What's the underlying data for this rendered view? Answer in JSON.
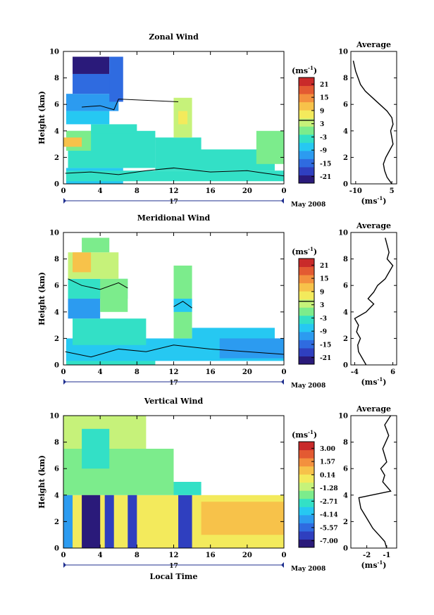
{
  "figure": {
    "xlabel": "Local Time",
    "date_label": "May 2008",
    "day_label": "17",
    "unit_label": "(ms",
    "unit_exp": "-1",
    "unit_close": ")"
  },
  "chart_data": [
    {
      "type": "heatmap",
      "title": "Zonal Wind",
      "ylabel": "Height (km)",
      "xlim": [
        0,
        24
      ],
      "ylim": [
        0,
        10
      ],
      "xticks": [
        "0",
        "4",
        "8",
        "12",
        "16",
        "20",
        "0"
      ],
      "yticks": [
        "0",
        "2",
        "4",
        "6",
        "8",
        "10"
      ],
      "colorbar": {
        "label": "(ms-1)",
        "ticks": [
          "21",
          "15",
          "9",
          "3",
          "-3",
          "-9",
          "-15",
          "-21"
        ],
        "range": [
          -24,
          24
        ]
      },
      "cells": [
        {
          "x0": 0.3,
          "x1": 6.5,
          "y0": 0,
          "y1": 1.2,
          "v": -6
        },
        {
          "x0": 0.3,
          "x1": 24,
          "y0": 0.2,
          "y1": 1.0,
          "v": -5
        },
        {
          "x0": 0.5,
          "x1": 10,
          "y0": 1.2,
          "y1": 4.0,
          "v": -2
        },
        {
          "x0": 0.3,
          "x1": 3,
          "y0": 2.5,
          "y1": 4.0,
          "v": 1
        },
        {
          "x0": 0,
          "x1": 2,
          "y0": 2.8,
          "y1": 3.5,
          "v": 10
        },
        {
          "x0": 3,
          "x1": 8,
          "y0": 3.8,
          "y1": 4.5,
          "v": -4
        },
        {
          "x0": 0.3,
          "x1": 5,
          "y0": 4.5,
          "y1": 5.5,
          "v": -6
        },
        {
          "x0": 0.3,
          "x1": 6,
          "y0": 5.5,
          "y1": 6.8,
          "v": -10
        },
        {
          "x0": 1,
          "x1": 6,
          "y0": 6.8,
          "y1": 8.3,
          "v": -15
        },
        {
          "x0": 1,
          "x1": 5,
          "y0": 8.3,
          "y1": 9.6,
          "v": -22
        },
        {
          "x0": 5,
          "x1": 6.5,
          "y0": 6.2,
          "y1": 9.6,
          "v": -13
        },
        {
          "x0": 10,
          "x1": 15,
          "y0": 1.0,
          "y1": 3.5,
          "v": -3
        },
        {
          "x0": 12,
          "x1": 14,
          "y0": 3.5,
          "y1": 6.5,
          "v": 2
        },
        {
          "x0": 12.5,
          "x1": 13.5,
          "y0": 4.5,
          "y1": 5.5,
          "v": 6
        },
        {
          "x0": 14,
          "x1": 23,
          "y0": 1.0,
          "y1": 2.6,
          "v": -3
        },
        {
          "x0": 21,
          "x1": 24,
          "y0": 1.5,
          "y1": 4.0,
          "v": -1
        }
      ],
      "zero_contours": [
        [
          [
            0.2,
            0.8
          ],
          [
            3,
            0.9
          ],
          [
            6,
            0.7
          ],
          [
            9,
            1.0
          ],
          [
            12,
            1.2
          ],
          [
            16,
            0.9
          ],
          [
            20,
            1.0
          ],
          [
            24,
            0.6
          ]
        ],
        [
          [
            2,
            5.8
          ],
          [
            4,
            5.9
          ],
          [
            5.5,
            5.6
          ],
          [
            6,
            6.4
          ],
          [
            12.5,
            6.2
          ]
        ]
      ],
      "profile": {
        "title": "Average",
        "unit": "(ms",
        "xlim": [
          -12,
          7
        ],
        "xticks": [
          "-10",
          "5"
        ],
        "xtick_vals": [
          -10,
          5
        ],
        "yticks": [
          "0",
          "2",
          "4",
          "6",
          "8",
          "10"
        ],
        "zero_line": -1,
        "x": [
          5,
          3,
          2,
          1.5,
          2.5,
          4,
          5.5,
          5,
          4.5,
          5.5,
          5,
          3,
          0,
          -3,
          -6,
          -8,
          -9,
          -10,
          -11
        ],
        "y": [
          0,
          0.5,
          1,
          1.5,
          2,
          2.5,
          3,
          3.5,
          4,
          4.5,
          5,
          5.5,
          6,
          6.5,
          7,
          7.5,
          8,
          8.5,
          9.3
        ]
      }
    },
    {
      "type": "heatmap",
      "title": "Meridional Wind",
      "ylabel": "Height (km)",
      "xlim": [
        0,
        24
      ],
      "ylim": [
        0,
        10
      ],
      "xticks": [
        "0",
        "4",
        "8",
        "12",
        "16",
        "20",
        "0"
      ],
      "yticks": [
        "0",
        "2",
        "4",
        "6",
        "8",
        "10"
      ],
      "colorbar": {
        "label": "(ms-1)",
        "ticks": [
          "21",
          "15",
          "9",
          "3",
          "-3",
          "-9",
          "-15",
          "-21"
        ],
        "range": [
          -24,
          24
        ]
      },
      "cells": [
        {
          "x0": 0.3,
          "x1": 10,
          "y0": 0,
          "y1": 1.5,
          "v": -5
        },
        {
          "x0": 0.3,
          "x1": 24,
          "y0": 0.3,
          "y1": 2.0,
          "v": -8
        },
        {
          "x0": 1,
          "x1": 9,
          "y0": 1.5,
          "y1": 3.5,
          "v": -4
        },
        {
          "x0": 0.5,
          "x1": 4,
          "y0": 3.5,
          "y1": 5.0,
          "v": -10
        },
        {
          "x0": 0.5,
          "x1": 7,
          "y0": 5.0,
          "y1": 6.5,
          "v": -2
        },
        {
          "x0": 4,
          "x1": 7,
          "y0": 4,
          "y1": 6.5,
          "v": 0
        },
        {
          "x0": 0.5,
          "x1": 6,
          "y0": 6.5,
          "y1": 8.5,
          "v": 4
        },
        {
          "x0": 1,
          "x1": 3,
          "y0": 7,
          "y1": 8.5,
          "v": 12
        },
        {
          "x0": 2,
          "x1": 5,
          "y0": 8.5,
          "y1": 9.6,
          "v": -1
        },
        {
          "x0": 12,
          "x1": 14,
          "y0": 2,
          "y1": 7.5,
          "v": 1
        },
        {
          "x0": 12,
          "x1": 14,
          "y0": 4,
          "y1": 5,
          "v": -6
        },
        {
          "x0": 14,
          "x1": 23,
          "y0": 1,
          "y1": 2.8,
          "v": -7
        },
        {
          "x0": 17,
          "x1": 24,
          "y0": 0.5,
          "y1": 2.0,
          "v": -11
        }
      ],
      "zero_contours": [
        [
          [
            0.2,
            1.0
          ],
          [
            3,
            0.6
          ],
          [
            6,
            1.2
          ],
          [
            9,
            1.0
          ],
          [
            12,
            1.5
          ],
          [
            16,
            1.2
          ],
          [
            20,
            1.0
          ],
          [
            24,
            0.8
          ]
        ],
        [
          [
            0.5,
            6.5
          ],
          [
            2,
            6.0
          ],
          [
            4,
            5.7
          ],
          [
            6,
            6.2
          ],
          [
            7,
            5.8
          ]
        ],
        [
          [
            12,
            4.4
          ],
          [
            13,
            4.8
          ],
          [
            14,
            4.3
          ]
        ]
      ],
      "profile": {
        "title": "Average",
        "unit": "(ms",
        "xlim": [
          -5,
          7
        ],
        "xticks": [
          "-4",
          "6"
        ],
        "xtick_vals": [
          -4,
          6
        ],
        "yticks": [
          "0",
          "2",
          "4",
          "6",
          "8",
          "10"
        ],
        "zero_line": -2,
        "x": [
          -1,
          -2,
          -3,
          -3.2,
          -2.5,
          -3.5,
          -3,
          -4,
          -1,
          0,
          1,
          -0.5,
          1,
          2,
          4,
          5,
          6,
          4.5,
          5,
          4
        ],
        "y": [
          0,
          0.5,
          1,
          1.5,
          2,
          2.5,
          3,
          3.5,
          4,
          4.3,
          4.6,
          5,
          5.5,
          6,
          6.5,
          7,
          7.5,
          8,
          8.5,
          9.6
        ]
      }
    },
    {
      "type": "heatmap",
      "title": "Vertical Wind",
      "ylabel": "Height (km)",
      "xlim": [
        0,
        24
      ],
      "ylim": [
        0,
        10
      ],
      "xticks": [
        "0",
        "4",
        "8",
        "12",
        "16",
        "20",
        "0"
      ],
      "yticks": [
        "0",
        "2",
        "4",
        "6",
        "8",
        "10"
      ],
      "colorbar": {
        "label": "(ms-1)",
        "ticks": [
          "3.00",
          "1.57",
          "0.14",
          "-1.28",
          "-2.71",
          "-4.14",
          "-5.57",
          "-7.00"
        ],
        "range": [
          -7.72,
          3.72
        ]
      },
      "cells": [
        {
          "x0": 0,
          "x1": 24,
          "y0": 0,
          "y1": 4.0,
          "v": -0.5
        },
        {
          "x0": 0,
          "x1": 12,
          "y0": 4.0,
          "y1": 7.5,
          "v": -1.8
        },
        {
          "x0": 0,
          "x1": 9,
          "y0": 7.5,
          "y1": 10,
          "v": -1.5
        },
        {
          "x0": 2,
          "x1": 5,
          "y0": 6,
          "y1": 9,
          "v": -2.5
        },
        {
          "x0": 0,
          "x1": 1,
          "y0": 0,
          "y1": 4,
          "v": -4.5
        },
        {
          "x0": 2,
          "x1": 4,
          "y0": 0,
          "y1": 4,
          "v": -7
        },
        {
          "x0": 4.5,
          "x1": 5.5,
          "y0": 0,
          "y1": 4,
          "v": -6.5
        },
        {
          "x0": 7,
          "x1": 8,
          "y0": 0,
          "y1": 4,
          "v": -6
        },
        {
          "x0": 12.5,
          "x1": 14,
          "y0": 0,
          "y1": 4,
          "v": -6.8
        },
        {
          "x0": 12,
          "x1": 15,
          "y0": 4,
          "y1": 5,
          "v": -3
        },
        {
          "x0": 15,
          "x1": 24,
          "y0": 1,
          "y1": 3.5,
          "v": 0.6
        }
      ],
      "zero_contours": [],
      "profile": {
        "title": "Average",
        "unit": "(ms",
        "xlim": [
          -2.8,
          -0.5
        ],
        "xticks": [
          "-2",
          "-1"
        ],
        "xtick_vals": [
          -2,
          -1
        ],
        "yticks": [
          "0",
          "2",
          "4",
          "6",
          "8",
          "10"
        ],
        "zero_line": null,
        "x": [
          -1,
          -1.1,
          -1.4,
          -1.7,
          -1.9,
          -2.1,
          -2.3,
          -2.4,
          -0.8,
          -1.2,
          -1.1,
          -1.3,
          -1.0,
          -1.2,
          -0.9,
          -1.1,
          -0.8
        ],
        "y": [
          0,
          0.5,
          1,
          1.5,
          2,
          2.5,
          3,
          3.8,
          4.3,
          5,
          5.5,
          6,
          6.5,
          7.5,
          8.5,
          9.3,
          10
        ]
      }
    }
  ]
}
